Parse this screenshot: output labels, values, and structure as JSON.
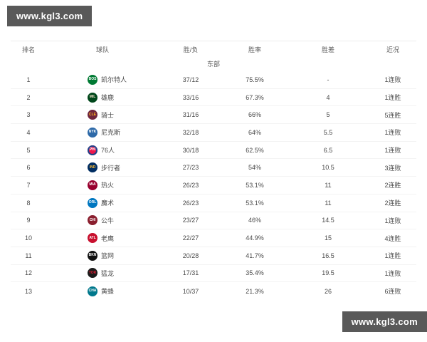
{
  "watermark": {
    "text": "www.kgl3.com"
  },
  "colors": {
    "watermark_bg": "#595959"
  },
  "table": {
    "columns": {
      "rank": "排名",
      "team": "球队",
      "record": "胜/负",
      "pct": "胜率",
      "gb": "胜差",
      "streak": "近况"
    },
    "section_label": "东部",
    "rows": [
      {
        "rank": "1",
        "team": "凯尔特人",
        "abbr": "BOS",
        "logo_bg": "#007A33",
        "logo_fg": "#ffffff",
        "record": "37/12",
        "pct": "75.5%",
        "gb": "-",
        "streak": "1连败"
      },
      {
        "rank": "2",
        "team": "雄鹿",
        "abbr": "MIL",
        "logo_bg": "#00471B",
        "logo_fg": "#EEE1C6",
        "record": "33/16",
        "pct": "67.3%",
        "gb": "4",
        "streak": "1连胜"
      },
      {
        "rank": "3",
        "team": "骑士",
        "abbr": "CLE",
        "logo_bg": "#6F263D",
        "logo_fg": "#FFB81C",
        "record": "31/16",
        "pct": "66%",
        "gb": "5",
        "streak": "5连胜"
      },
      {
        "rank": "4",
        "team": "尼克斯",
        "abbr": "NYK",
        "logo_bg": "#2D69A8",
        "logo_fg": "#ffffff",
        "record": "32/18",
        "pct": "64%",
        "gb": "5.5",
        "streak": "1连败"
      },
      {
        "rank": "5",
        "team": "76人",
        "abbr": "PHI",
        "logo_bg": "#ED174C",
        "logo_fg": "#ffffff",
        "logo_border": "#1D428A",
        "record": "30/18",
        "pct": "62.5%",
        "gb": "6.5",
        "streak": "1连败"
      },
      {
        "rank": "6",
        "team": "步行者",
        "abbr": "IND",
        "logo_bg": "#002D62",
        "logo_fg": "#FDBB30",
        "record": "27/23",
        "pct": "54%",
        "gb": "10.5",
        "streak": "3连败"
      },
      {
        "rank": "7",
        "team": "热火",
        "abbr": "MIA",
        "logo_bg": "#98002E",
        "logo_fg": "#ffffff",
        "record": "26/23",
        "pct": "53.1%",
        "gb": "11",
        "streak": "2连胜"
      },
      {
        "rank": "8",
        "team": "魔术",
        "abbr": "ORL",
        "logo_bg": "#0077C0",
        "logo_fg": "#ffffff",
        "record": "26/23",
        "pct": "53.1%",
        "gb": "11",
        "streak": "2连胜"
      },
      {
        "rank": "9",
        "team": "公牛",
        "abbr": "CHI",
        "logo_bg": "#8A1E2E",
        "logo_fg": "#ffffff",
        "record": "23/27",
        "pct": "46%",
        "gb": "14.5",
        "streak": "1连败"
      },
      {
        "rank": "10",
        "team": "老鹰",
        "abbr": "ATL",
        "logo_bg": "#C8102E",
        "logo_fg": "#ffffff",
        "record": "22/27",
        "pct": "44.9%",
        "gb": "15",
        "streak": "4连胜"
      },
      {
        "rank": "11",
        "team": "篮网",
        "abbr": "BKN",
        "logo_bg": "#111111",
        "logo_fg": "#ffffff",
        "record": "20/28",
        "pct": "41.7%",
        "gb": "16.5",
        "streak": "1连胜"
      },
      {
        "rank": "12",
        "team": "猛龙",
        "abbr": "TOR",
        "logo_bg": "#1A1A1A",
        "logo_fg": "#D91A32",
        "record": "17/31",
        "pct": "35.4%",
        "gb": "19.5",
        "streak": "1连败"
      },
      {
        "rank": "13",
        "team": "黄蜂",
        "abbr": "CHA",
        "logo_bg": "#00788C",
        "logo_fg": "#ffffff",
        "record": "10/37",
        "pct": "21.3%",
        "gb": "26",
        "streak": "6连败"
      }
    ]
  }
}
